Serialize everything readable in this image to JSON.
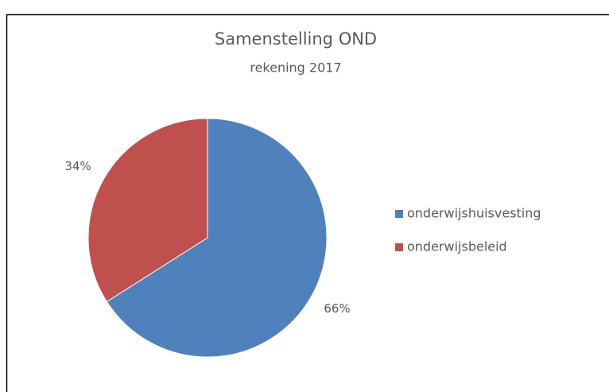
{
  "chart_data": {
    "type": "pie",
    "title": "Samenstelling OND",
    "subtitle": "rekening 2017",
    "categories": [
      "onderwijshuisvesting",
      "onderwijsbeleid"
    ],
    "values": [
      66,
      34
    ],
    "value_labels": [
      "66%",
      "34%"
    ],
    "colors": [
      "#4f81bd",
      "#c0504d"
    ],
    "legend": "right"
  }
}
